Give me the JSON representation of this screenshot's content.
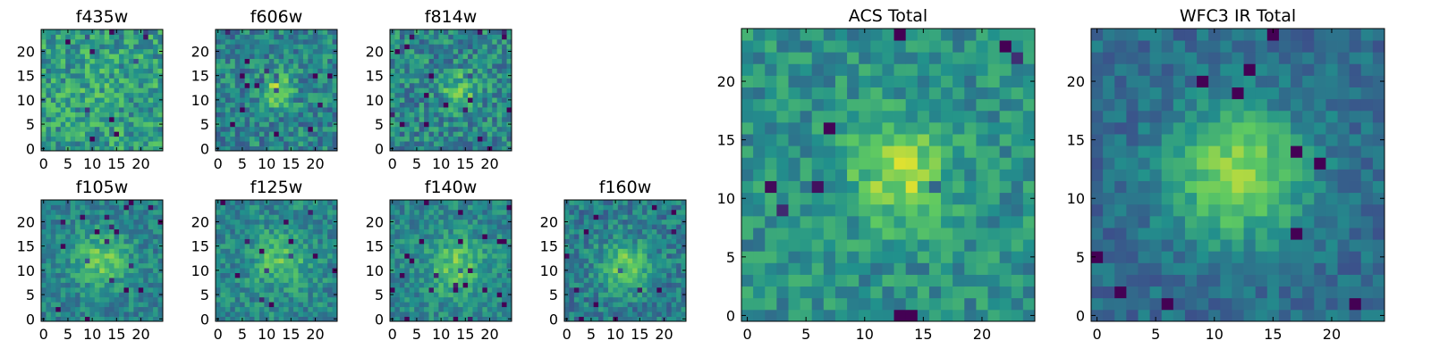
{
  "figure": {
    "colormap": [
      "#440154",
      "#3b528b",
      "#21918c",
      "#5ec962",
      "#fde725"
    ]
  },
  "chart_data": [
    {
      "type": "heatmap",
      "title": "f435w",
      "grid_size": 25,
      "blob": {
        "cx": 12,
        "cy": 12,
        "sigma": 4,
        "amp": 0.05
      },
      "noise": 0.21,
      "bias": 0.55,
      "seed": 11,
      "xticks": [
        0,
        5,
        10,
        15,
        20
      ],
      "yticks": [
        0,
        5,
        10,
        15,
        20
      ],
      "xlim": [
        -0.5,
        24.5
      ],
      "ylim": [
        -0.5,
        24.5
      ]
    },
    {
      "type": "heatmap",
      "title": "f606w",
      "grid_size": 25,
      "blob": {
        "cx": 12,
        "cy": 12,
        "sigma": 2.5,
        "amp": 0.32
      },
      "noise": 0.19,
      "bias": 0.45,
      "seed": 23,
      "xticks": [
        0,
        5,
        10,
        15,
        20
      ],
      "yticks": [
        0,
        5,
        10,
        15,
        20
      ],
      "xlim": [
        -0.5,
        24.5
      ],
      "ylim": [
        -0.5,
        24.5
      ]
    },
    {
      "type": "heatmap",
      "title": "f814w",
      "grid_size": 25,
      "blob": {
        "cx": 14,
        "cy": 12,
        "sigma": 2.5,
        "amp": 0.28
      },
      "noise": 0.2,
      "bias": 0.46,
      "seed": 37,
      "xticks": [
        0,
        5,
        10,
        15,
        20
      ],
      "yticks": [
        0,
        5,
        10,
        15,
        20
      ],
      "xlim": [
        -0.5,
        24.5
      ],
      "ylim": [
        -0.5,
        24.5
      ]
    },
    {
      "type": "heatmap",
      "title": "f105w",
      "grid_size": 25,
      "blob": {
        "cx": 12,
        "cy": 12,
        "sigma": 4,
        "amp": 0.3
      },
      "noise": 0.14,
      "bias": 0.44,
      "seed": 41,
      "xticks": [
        0,
        5,
        10,
        15,
        20
      ],
      "yticks": [
        0,
        5,
        10,
        15,
        20
      ],
      "xlim": [
        -0.5,
        24.5
      ],
      "ylim": [
        -0.5,
        24.5
      ]
    },
    {
      "type": "heatmap",
      "title": "f125w",
      "grid_size": 25,
      "blob": {
        "cx": 13,
        "cy": 12,
        "sigma": 4,
        "amp": 0.25
      },
      "noise": 0.15,
      "bias": 0.46,
      "seed": 53,
      "xticks": [
        0,
        5,
        10,
        15,
        20
      ],
      "yticks": [
        0,
        5,
        10,
        15,
        20
      ],
      "xlim": [
        -0.5,
        24.5
      ],
      "ylim": [
        -0.5,
        24.5
      ]
    },
    {
      "type": "heatmap",
      "title": "f140w",
      "grid_size": 25,
      "blob": {
        "cx": 13,
        "cy": 11,
        "sigma": 4,
        "amp": 0.28
      },
      "noise": 0.14,
      "bias": 0.46,
      "seed": 67,
      "xticks": [
        0,
        5,
        10,
        15,
        20
      ],
      "yticks": [
        0,
        5,
        10,
        15,
        20
      ],
      "xlim": [
        -0.5,
        24.5
      ],
      "ylim": [
        -0.5,
        24.5
      ]
    },
    {
      "type": "heatmap",
      "title": "f160w",
      "grid_size": 25,
      "blob": {
        "cx": 12,
        "cy": 11,
        "sigma": 3.5,
        "amp": 0.35
      },
      "noise": 0.16,
      "bias": 0.42,
      "seed": 79,
      "xticks": [
        0,
        5,
        10,
        15,
        20
      ],
      "yticks": [
        0,
        5,
        10,
        15,
        20
      ],
      "xlim": [
        -0.5,
        24.5
      ],
      "ylim": [
        -0.5,
        24.5
      ]
    },
    {
      "type": "heatmap",
      "title": "ACS Total",
      "grid_size": 25,
      "blob": {
        "cx": 13,
        "cy": 12,
        "sigma": 3,
        "amp": 0.35
      },
      "noise": 0.15,
      "bias": 0.5,
      "seed": 97,
      "xticks": [
        0,
        5,
        10,
        15,
        20
      ],
      "yticks": [
        0,
        5,
        10,
        15,
        20
      ],
      "xlim": [
        -0.5,
        24.5
      ],
      "ylim": [
        -0.5,
        24.5
      ]
    },
    {
      "type": "heatmap",
      "title": "WFC3 IR Total",
      "grid_size": 25,
      "blob": {
        "cx": 12,
        "cy": 12,
        "sigma": 4,
        "amp": 0.5
      },
      "noise": 0.11,
      "bias": 0.35,
      "seed": 113,
      "xticks": [
        0,
        5,
        10,
        15,
        20
      ],
      "yticks": [
        0,
        5,
        10,
        15,
        20
      ],
      "xlim": [
        -0.5,
        24.5
      ],
      "ylim": [
        -0.5,
        24.5
      ]
    }
  ]
}
